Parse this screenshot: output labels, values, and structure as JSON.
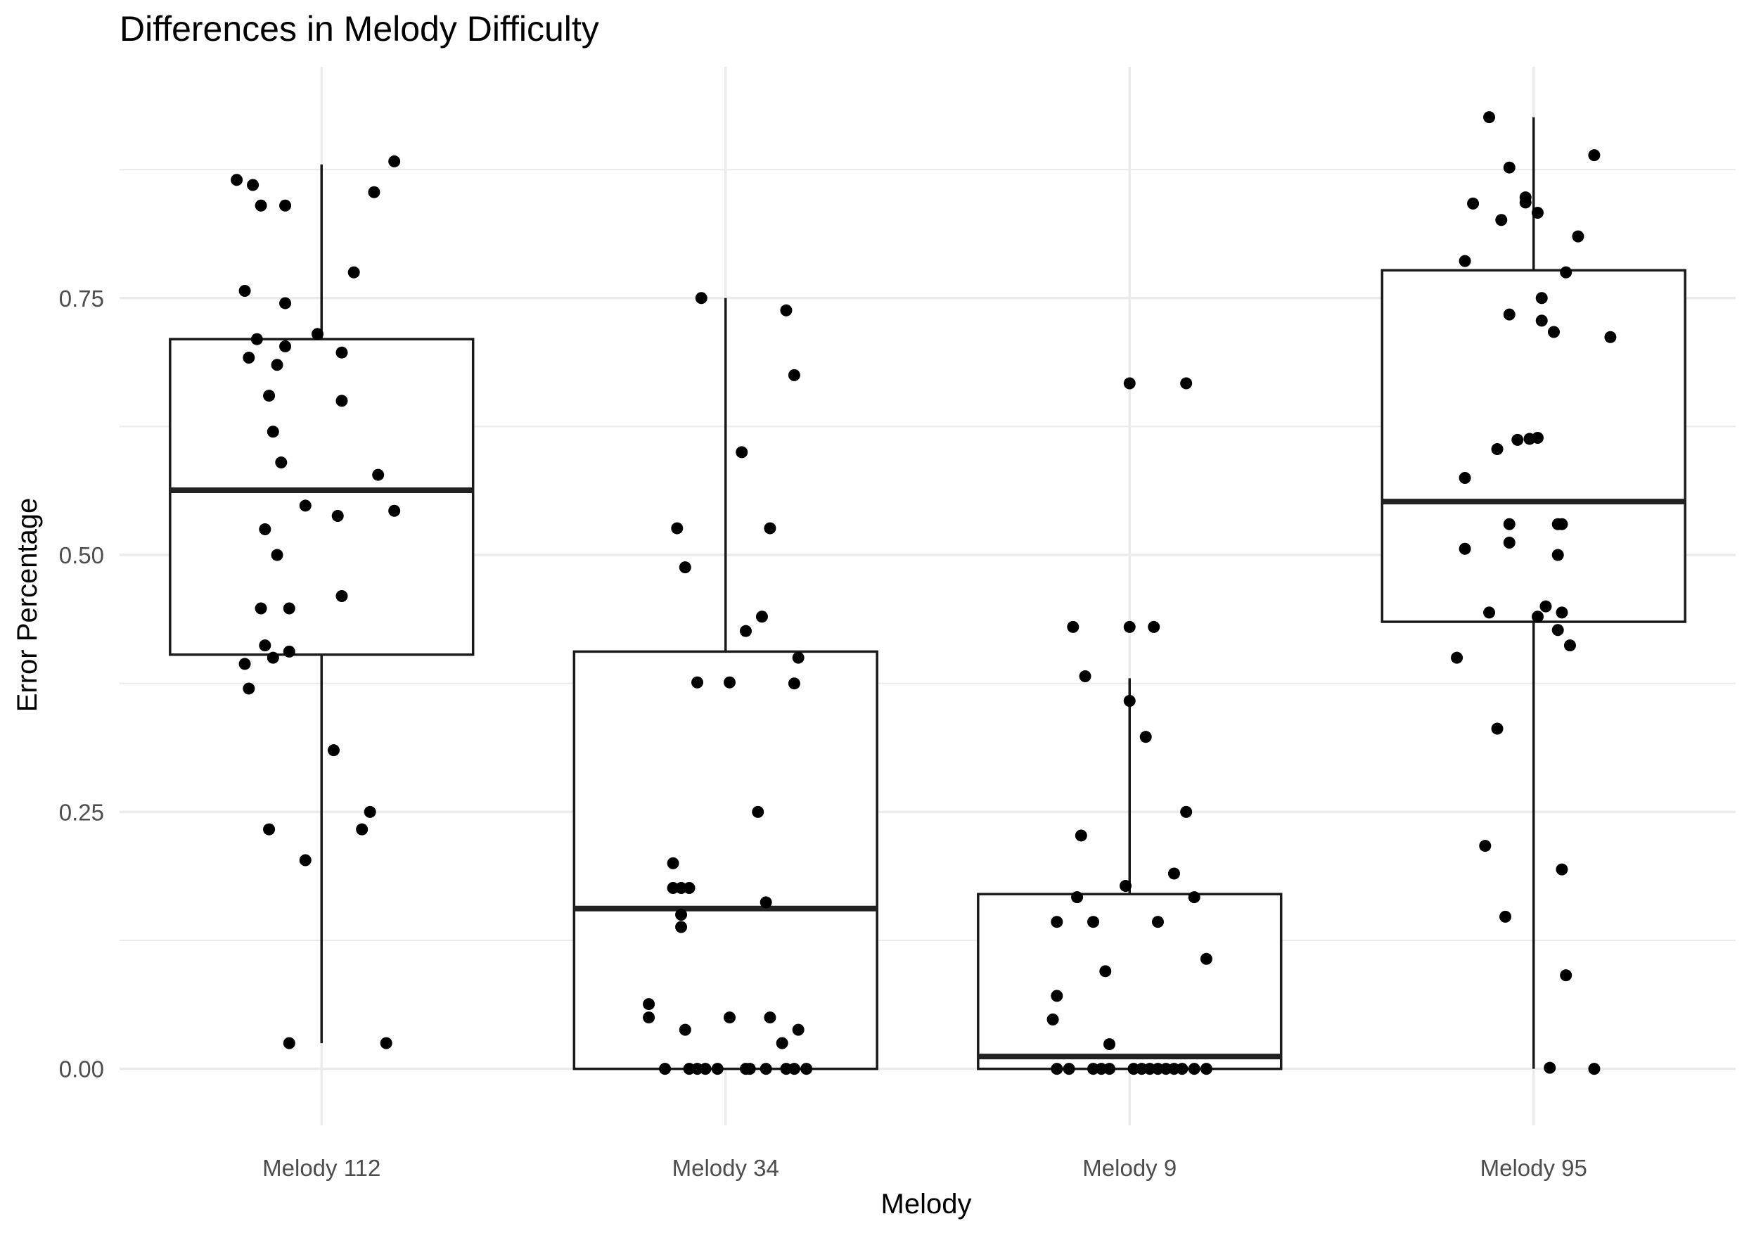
{
  "chart_data": {
    "type": "box",
    "title": "Differences in Melody Difficulty",
    "xlabel": "Melody",
    "ylabel": "Error Percentage",
    "ylim": [
      -0.055,
      0.975
    ],
    "y_ticks": [
      0.0,
      0.25,
      0.5,
      0.75
    ],
    "y_tick_labels": [
      "0.00",
      "0.25",
      "0.50",
      "0.75"
    ],
    "grid": true,
    "legend": "none",
    "colors": {
      "box_stroke": "#1a1a1a",
      "median": "#222222",
      "point": "#000000",
      "grid": "#ebebeb",
      "axis_text": "#4d4d4d",
      "title_text": "#000000"
    },
    "categories": [
      "Melody 112",
      "Melody 34",
      "Melody 9",
      "Melody 95"
    ],
    "boxes": [
      {
        "category": "Melody 112",
        "whisker_low": 0.025,
        "q1": 0.403,
        "median": 0.563,
        "q3": 0.71,
        "whisker_high": 0.88
      },
      {
        "category": "Melody 34",
        "whisker_low": 0.0,
        "q1": 0.0,
        "median": 0.156,
        "q3": 0.406,
        "whisker_high": 0.75
      },
      {
        "category": "Melody 9",
        "whisker_low": 0.0,
        "q1": 0.0,
        "median": 0.012,
        "q3": 0.17,
        "whisker_high": 0.38
      },
      {
        "category": "Melody 95",
        "whisker_low": 0.0,
        "q1": 0.435,
        "median": 0.552,
        "q3": 0.777,
        "whisker_high": 0.926
      }
    ],
    "points": [
      {
        "category": "Melody 112",
        "values": [
          {
            "jitter": -0.21,
            "y": 0.865
          },
          {
            "jitter": -0.17,
            "y": 0.86
          },
          {
            "jitter": -0.15,
            "y": 0.84
          },
          {
            "jitter": -0.09,
            "y": 0.84
          },
          {
            "jitter": 0.13,
            "y": 0.853
          },
          {
            "jitter": 0.18,
            "y": 0.883
          },
          {
            "jitter": -0.19,
            "y": 0.757
          },
          {
            "jitter": -0.09,
            "y": 0.745
          },
          {
            "jitter": 0.08,
            "y": 0.775
          },
          {
            "jitter": -0.16,
            "y": 0.71
          },
          {
            "jitter": -0.01,
            "y": 0.715
          },
          {
            "jitter": -0.09,
            "y": 0.703
          },
          {
            "jitter": -0.18,
            "y": 0.692
          },
          {
            "jitter": -0.11,
            "y": 0.685
          },
          {
            "jitter": 0.05,
            "y": 0.697
          },
          {
            "jitter": -0.13,
            "y": 0.655
          },
          {
            "jitter": 0.05,
            "y": 0.65
          },
          {
            "jitter": -0.12,
            "y": 0.62
          },
          {
            "jitter": -0.1,
            "y": 0.59
          },
          {
            "jitter": 0.14,
            "y": 0.578
          },
          {
            "jitter": -0.04,
            "y": 0.548
          },
          {
            "jitter": 0.04,
            "y": 0.538
          },
          {
            "jitter": 0.18,
            "y": 0.543
          },
          {
            "jitter": -0.14,
            "y": 0.525
          },
          {
            "jitter": -0.11,
            "y": 0.5
          },
          {
            "jitter": 0.05,
            "y": 0.46
          },
          {
            "jitter": -0.15,
            "y": 0.448
          },
          {
            "jitter": -0.08,
            "y": 0.448
          },
          {
            "jitter": -0.14,
            "y": 0.412
          },
          {
            "jitter": -0.08,
            "y": 0.406
          },
          {
            "jitter": -0.12,
            "y": 0.4
          },
          {
            "jitter": -0.19,
            "y": 0.394
          },
          {
            "jitter": -0.18,
            "y": 0.37
          },
          {
            "jitter": 0.03,
            "y": 0.31
          },
          {
            "jitter": -0.13,
            "y": 0.233
          },
          {
            "jitter": 0.12,
            "y": 0.25
          },
          {
            "jitter": 0.1,
            "y": 0.233
          },
          {
            "jitter": -0.04,
            "y": 0.203
          },
          {
            "jitter": -0.08,
            "y": 0.025
          },
          {
            "jitter": 0.16,
            "y": 0.025
          }
        ]
      },
      {
        "category": "Melody 34",
        "values": [
          {
            "jitter": -0.06,
            "y": 0.75
          },
          {
            "jitter": 0.15,
            "y": 0.738
          },
          {
            "jitter": 0.17,
            "y": 0.675
          },
          {
            "jitter": 0.04,
            "y": 0.6
          },
          {
            "jitter": -0.12,
            "y": 0.526
          },
          {
            "jitter": 0.11,
            "y": 0.526
          },
          {
            "jitter": -0.1,
            "y": 0.488
          },
          {
            "jitter": 0.09,
            "y": 0.44
          },
          {
            "jitter": 0.05,
            "y": 0.426
          },
          {
            "jitter": 0.18,
            "y": 0.4
          },
          {
            "jitter": -0.07,
            "y": 0.376
          },
          {
            "jitter": 0.01,
            "y": 0.376
          },
          {
            "jitter": 0.17,
            "y": 0.375
          },
          {
            "jitter": 0.08,
            "y": 0.25
          },
          {
            "jitter": -0.13,
            "y": 0.2
          },
          {
            "jitter": -0.13,
            "y": 0.176
          },
          {
            "jitter": -0.11,
            "y": 0.176
          },
          {
            "jitter": -0.09,
            "y": 0.176
          },
          {
            "jitter": 0.1,
            "y": 0.162
          },
          {
            "jitter": -0.11,
            "y": 0.15
          },
          {
            "jitter": -0.11,
            "y": 0.138
          },
          {
            "jitter": -0.19,
            "y": 0.063
          },
          {
            "jitter": -0.19,
            "y": 0.05
          },
          {
            "jitter": 0.01,
            "y": 0.05
          },
          {
            "jitter": 0.11,
            "y": 0.05
          },
          {
            "jitter": -0.1,
            "y": 0.038
          },
          {
            "jitter": 0.18,
            "y": 0.038
          },
          {
            "jitter": 0.14,
            "y": 0.025
          },
          {
            "jitter": -0.15,
            "y": 0.0
          },
          {
            "jitter": -0.09,
            "y": 0.0
          },
          {
            "jitter": -0.07,
            "y": 0.0
          },
          {
            "jitter": -0.05,
            "y": 0.0
          },
          {
            "jitter": -0.02,
            "y": 0.0
          },
          {
            "jitter": 0.05,
            "y": 0.0
          },
          {
            "jitter": 0.06,
            "y": 0.0
          },
          {
            "jitter": 0.1,
            "y": 0.0
          },
          {
            "jitter": 0.15,
            "y": 0.0
          },
          {
            "jitter": 0.17,
            "y": 0.0
          },
          {
            "jitter": 0.2,
            "y": 0.0
          }
        ]
      },
      {
        "category": "Melody 9",
        "values": [
          {
            "jitter": 0.0,
            "y": 0.667
          },
          {
            "jitter": 0.14,
            "y": 0.667
          },
          {
            "jitter": -0.14,
            "y": 0.43
          },
          {
            "jitter": 0.0,
            "y": 0.43
          },
          {
            "jitter": 0.06,
            "y": 0.43
          },
          {
            "jitter": -0.11,
            "y": 0.382
          },
          {
            "jitter": 0.0,
            "y": 0.358
          },
          {
            "jitter": 0.04,
            "y": 0.323
          },
          {
            "jitter": 0.14,
            "y": 0.25
          },
          {
            "jitter": -0.12,
            "y": 0.227
          },
          {
            "jitter": 0.11,
            "y": 0.19
          },
          {
            "jitter": -0.01,
            "y": 0.178
          },
          {
            "jitter": -0.13,
            "y": 0.167
          },
          {
            "jitter": 0.16,
            "y": 0.167
          },
          {
            "jitter": -0.18,
            "y": 0.143
          },
          {
            "jitter": -0.09,
            "y": 0.143
          },
          {
            "jitter": 0.07,
            "y": 0.143
          },
          {
            "jitter": 0.19,
            "y": 0.107
          },
          {
            "jitter": -0.06,
            "y": 0.095
          },
          {
            "jitter": -0.18,
            "y": 0.071
          },
          {
            "jitter": -0.19,
            "y": 0.048
          },
          {
            "jitter": -0.05,
            "y": 0.024
          },
          {
            "jitter": -0.18,
            "y": 0.0
          },
          {
            "jitter": -0.15,
            "y": 0.0
          },
          {
            "jitter": -0.09,
            "y": 0.0
          },
          {
            "jitter": -0.07,
            "y": 0.0
          },
          {
            "jitter": -0.05,
            "y": 0.0
          },
          {
            "jitter": 0.01,
            "y": 0.0
          },
          {
            "jitter": 0.03,
            "y": 0.0
          },
          {
            "jitter": 0.05,
            "y": 0.0
          },
          {
            "jitter": 0.07,
            "y": 0.0
          },
          {
            "jitter": 0.09,
            "y": 0.0
          },
          {
            "jitter": 0.11,
            "y": 0.0
          },
          {
            "jitter": 0.13,
            "y": 0.0
          },
          {
            "jitter": 0.16,
            "y": 0.0
          },
          {
            "jitter": 0.19,
            "y": 0.0
          }
        ]
      },
      {
        "category": "Melody 95",
        "values": [
          {
            "jitter": -0.11,
            "y": 0.926
          },
          {
            "jitter": 0.15,
            "y": 0.889
          },
          {
            "jitter": -0.06,
            "y": 0.877
          },
          {
            "jitter": -0.02,
            "y": 0.848
          },
          {
            "jitter": -0.02,
            "y": 0.843
          },
          {
            "jitter": -0.15,
            "y": 0.842
          },
          {
            "jitter": 0.01,
            "y": 0.833
          },
          {
            "jitter": -0.08,
            "y": 0.826
          },
          {
            "jitter": 0.11,
            "y": 0.81
          },
          {
            "jitter": -0.17,
            "y": 0.786
          },
          {
            "jitter": 0.08,
            "y": 0.775
          },
          {
            "jitter": 0.02,
            "y": 0.75
          },
          {
            "jitter": -0.06,
            "y": 0.734
          },
          {
            "jitter": 0.02,
            "y": 0.728
          },
          {
            "jitter": 0.05,
            "y": 0.717
          },
          {
            "jitter": 0.19,
            "y": 0.712
          },
          {
            "jitter": -0.04,
            "y": 0.612
          },
          {
            "jitter": -0.01,
            "y": 0.613
          },
          {
            "jitter": 0.01,
            "y": 0.614
          },
          {
            "jitter": -0.09,
            "y": 0.603
          },
          {
            "jitter": -0.17,
            "y": 0.575
          },
          {
            "jitter": -0.06,
            "y": 0.53
          },
          {
            "jitter": 0.06,
            "y": 0.53
          },
          {
            "jitter": 0.07,
            "y": 0.53
          },
          {
            "jitter": -0.17,
            "y": 0.506
          },
          {
            "jitter": -0.06,
            "y": 0.512
          },
          {
            "jitter": 0.06,
            "y": 0.5
          },
          {
            "jitter": -0.11,
            "y": 0.444
          },
          {
            "jitter": 0.07,
            "y": 0.444
          },
          {
            "jitter": 0.03,
            "y": 0.45
          },
          {
            "jitter": 0.01,
            "y": 0.44
          },
          {
            "jitter": 0.06,
            "y": 0.427
          },
          {
            "jitter": 0.09,
            "y": 0.412
          },
          {
            "jitter": -0.19,
            "y": 0.4
          },
          {
            "jitter": -0.09,
            "y": 0.331
          },
          {
            "jitter": -0.12,
            "y": 0.217
          },
          {
            "jitter": 0.07,
            "y": 0.194
          },
          {
            "jitter": -0.07,
            "y": 0.148
          },
          {
            "jitter": 0.08,
            "y": 0.091
          },
          {
            "jitter": 0.04,
            "y": 0.001
          },
          {
            "jitter": 0.15,
            "y": 0.0
          }
        ]
      }
    ]
  }
}
